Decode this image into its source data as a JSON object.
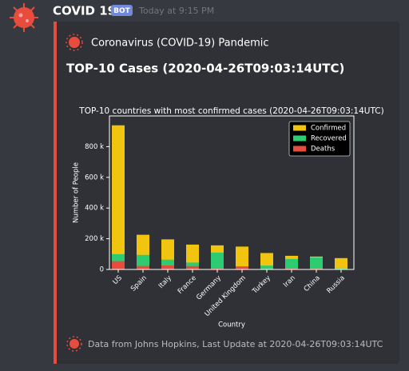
{
  "message": {
    "author": "COVID 19",
    "badge": "BOT",
    "timestamp": "Today at 9:15 PM"
  },
  "embed": {
    "author": "Coronavirus (COVID-19) Pandemic",
    "title": "TOP-10 Cases (2020-04-26T09:03:14UTC)",
    "footer": "Data from Johns Hopkins, Last Update at 2020-04-26T09:03:14UTC"
  },
  "chart_data": {
    "type": "bar",
    "title": "TOP-10 countries with most confirmed cases (2020-04-26T09:03:14UTC)",
    "xlabel": "Country",
    "ylabel": "Number of People",
    "categories": [
      "US",
      "Spain",
      "Italy",
      "France",
      "Germany",
      "United Kingdom",
      "Turkey",
      "Iran",
      "China",
      "Russia"
    ],
    "series": [
      {
        "name": "Confirmed",
        "color": "#f1c40f",
        "values": [
          939000,
          226000,
          196000,
          162000,
          157000,
          149000,
          107000,
          89000,
          84000,
          74000
        ]
      },
      {
        "name": "Recovered",
        "color": "#2ecc71",
        "values": [
          100000,
          95000,
          64000,
          45000,
          110000,
          0,
          25000,
          68000,
          78000,
          6000
        ]
      },
      {
        "name": "Deaths",
        "color": "#e74c3c",
        "values": [
          54000,
          23000,
          26000,
          22000,
          6000,
          20000,
          2700,
          5600,
          4600,
          700
        ]
      }
    ],
    "ylim": [
      0,
      1000000
    ],
    "yticks": [
      {
        "value": 0,
        "label": "0"
      },
      {
        "value": 200000,
        "label": "200 k"
      },
      {
        "value": 400000,
        "label": "400 k"
      },
      {
        "value": 600000,
        "label": "600 k"
      },
      {
        "value": 800000,
        "label": "800 k"
      }
    ],
    "legend": "upper right"
  }
}
